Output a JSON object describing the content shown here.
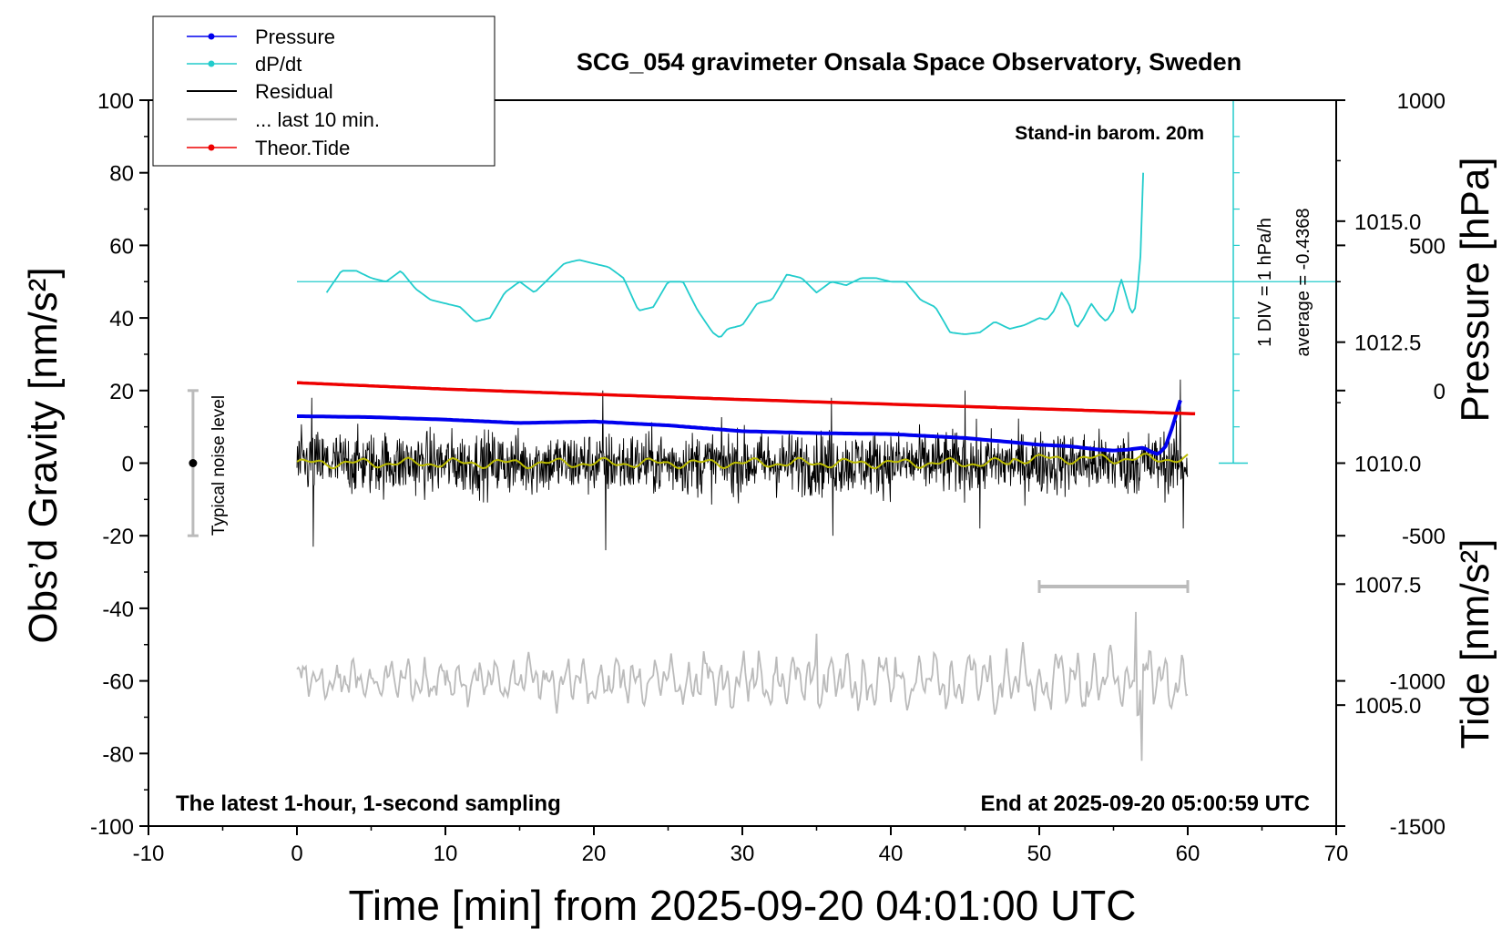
{
  "chart_data": {
    "type": "line",
    "title": "SCG_054 gravimeter Onsala Space Observatory, Sweden",
    "xlabel": "Time [min] from 2025-09-20 04:01:00 UTC",
    "ylabel_left": "Obs’d Gravity [nm/s²]",
    "ylabel_right_top": "Pressure [hPa]",
    "ylabel_right_bottom": "Tide [nm/s²]",
    "xlim": [
      -10,
      70
    ],
    "ylim": [
      -100,
      100
    ],
    "pressure_lim": [
      1002.5,
      1017.5
    ],
    "tide_lim": [
      -1500,
      1000
    ],
    "x_ticks": [
      "-10",
      "0",
      "10",
      "20",
      "30",
      "40",
      "50",
      "60",
      "70"
    ],
    "y_ticks": [
      "-100",
      "-80",
      "-60",
      "-40",
      "-20",
      "0",
      "20",
      "40",
      "60",
      "80",
      "100"
    ],
    "pressure_ticks": [
      "1005.0",
      "1007.5",
      "1010.0",
      "1012.5",
      "1015.0"
    ],
    "tide_ticks": [
      "-1500",
      "-1000",
      "-500",
      "0",
      "500",
      "1000"
    ],
    "legend": {
      "placement": "top-left",
      "entries": [
        {
          "label": "Pressure",
          "color": "#0000ee",
          "marker": true
        },
        {
          "label": "dP/dt",
          "color": "#22cccc",
          "marker": true
        },
        {
          "label": "Residual",
          "color": "#000000",
          "marker": false
        },
        {
          "label": "... last 10 min.",
          "color": "#bbbbbb",
          "marker": false
        },
        {
          "label": "Theor.Tide",
          "color": "#ee0000",
          "marker": true
        }
      ]
    },
    "annotations": {
      "barometer": "Stand-in barom. 20m",
      "dpdt_scale": "1 DIV = 1 hPa/h",
      "dpdt_average": "average = -0.4368",
      "noise_level": "Typical noise level",
      "footer_left": "The latest 1-hour, 1-second sampling",
      "footer_right": "End at 2025-09-20 05:00:59 UTC"
    },
    "noise_level_range": [
      -20,
      20
    ],
    "last10_bar_x": [
      50,
      60
    ],
    "last10_bar_y": -34,
    "series": [
      {
        "name": "Pressure",
        "axis": "pressure",
        "color": "#0000ee",
        "x": [
          0,
          5,
          10,
          15,
          20,
          25,
          30,
          35,
          40,
          45,
          50,
          52,
          54,
          55,
          56,
          57,
          57.5,
          58,
          58.5,
          59,
          59.5
        ],
        "values": [
          1010.97,
          1010.95,
          1010.9,
          1010.83,
          1010.86,
          1010.78,
          1010.66,
          1010.62,
          1010.6,
          1010.52,
          1010.38,
          1010.35,
          1010.28,
          1010.26,
          1010.28,
          1010.32,
          1010.24,
          1010.18,
          1010.34,
          1010.78,
          1011.3
        ]
      },
      {
        "name": "dP/dt",
        "axis": "gravity",
        "color": "#22cccc",
        "x": [
          2,
          3,
          4,
          5,
          6,
          7,
          8,
          9,
          10,
          11,
          12,
          13,
          14,
          15,
          16,
          17,
          18,
          19,
          20,
          21,
          22,
          23,
          24,
          25,
          26,
          27,
          28,
          28.5,
          29,
          30,
          31,
          32,
          33,
          34,
          35,
          36,
          37,
          38,
          39,
          40,
          41,
          42,
          43,
          44,
          45,
          46,
          47,
          48,
          49,
          50,
          50.5,
          51,
          51.5,
          52,
          52.5,
          53,
          53.5,
          54,
          54.5,
          55,
          55.5,
          56,
          56.2,
          56.5,
          56.8,
          57
        ],
        "values": [
          47,
          53,
          53,
          51,
          50,
          53,
          48,
          45,
          44,
          43,
          39,
          40,
          47,
          50,
          47,
          51,
          55,
          56,
          55,
          54,
          51,
          42,
          43,
          50,
          50,
          42,
          36,
          34.5,
          37,
          38,
          44,
          45,
          52,
          51,
          47,
          50,
          49,
          51,
          51,
          50,
          50,
          45,
          43,
          36,
          35.5,
          36,
          39,
          37,
          38,
          40,
          39.5,
          42,
          47,
          44,
          37,
          40,
          44,
          41,
          39,
          42,
          51,
          44,
          41,
          43,
          55,
          80
        ]
      },
      {
        "name": "Theor.Tide",
        "axis": "tide",
        "color": "#ee0000",
        "x": [
          0,
          10,
          20,
          30,
          40,
          50,
          60.5
        ],
        "values": [
          27,
          5,
          -13,
          -31,
          -47,
          -63,
          -80
        ]
      }
    ],
    "residual": {
      "name": "Residual",
      "color": "#000000",
      "x_start": 0,
      "x_end": 60,
      "amplitude": 8,
      "extremes": [
        {
          "x": 1,
          "y": 18
        },
        {
          "x": 1.1,
          "y": -23
        },
        {
          "x": 20.6,
          "y": 20
        },
        {
          "x": 20.8,
          "y": -24
        },
        {
          "x": 36,
          "y": 18
        },
        {
          "x": 36.1,
          "y": -20
        },
        {
          "x": 45,
          "y": 20
        },
        {
          "x": 46,
          "y": -18
        },
        {
          "x": 59.5,
          "y": 23
        },
        {
          "x": 59.7,
          "y": -18
        }
      ]
    },
    "smoothed_residual": {
      "color": "#bbbb00",
      "amplitude": 1.5
    },
    "last10": {
      "name": "... last 10 min.",
      "color": "#bbbbbb",
      "x_start": 0,
      "x_end": 60,
      "center": -60,
      "amplitude": 6,
      "extremes": [
        {
          "x": 56.5,
          "y": -41
        },
        {
          "x": 56.9,
          "y": -82
        },
        {
          "x": 35,
          "y": -47
        }
      ]
    }
  }
}
